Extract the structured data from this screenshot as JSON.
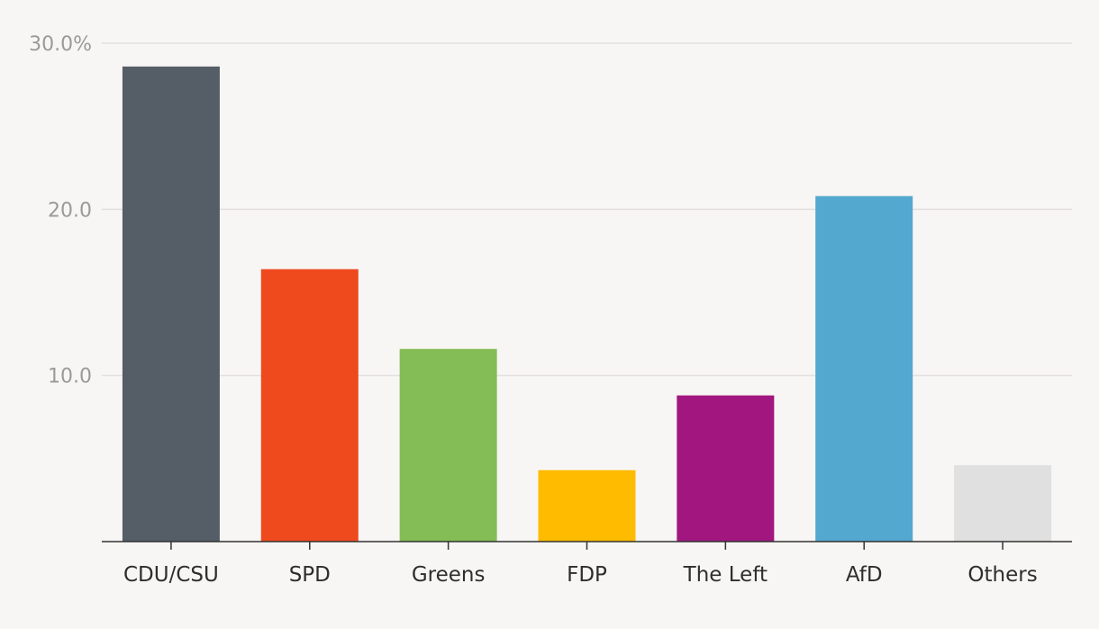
{
  "chart_data": {
    "type": "bar",
    "categories": [
      "CDU/CSU",
      "SPD",
      "Greens",
      "FDP",
      "The Left",
      "AfD",
      "Others"
    ],
    "values": [
      28.6,
      16.4,
      11.6,
      4.3,
      8.8,
      20.8,
      4.6
    ],
    "colors": [
      "#555d66",
      "#ee4a1e",
      "#84bd55",
      "#ffbb00",
      "#a1177f",
      "#53a8cf",
      "#e0e0e0"
    ],
    "ylim": [
      0,
      30
    ],
    "y_ticks": [
      {
        "value": 10,
        "label": "10.0"
      },
      {
        "value": 20,
        "label": "20.0"
      },
      {
        "value": 30,
        "label": "30.0%"
      }
    ],
    "grid": true,
    "title": "",
    "xlabel": "",
    "ylabel": ""
  }
}
